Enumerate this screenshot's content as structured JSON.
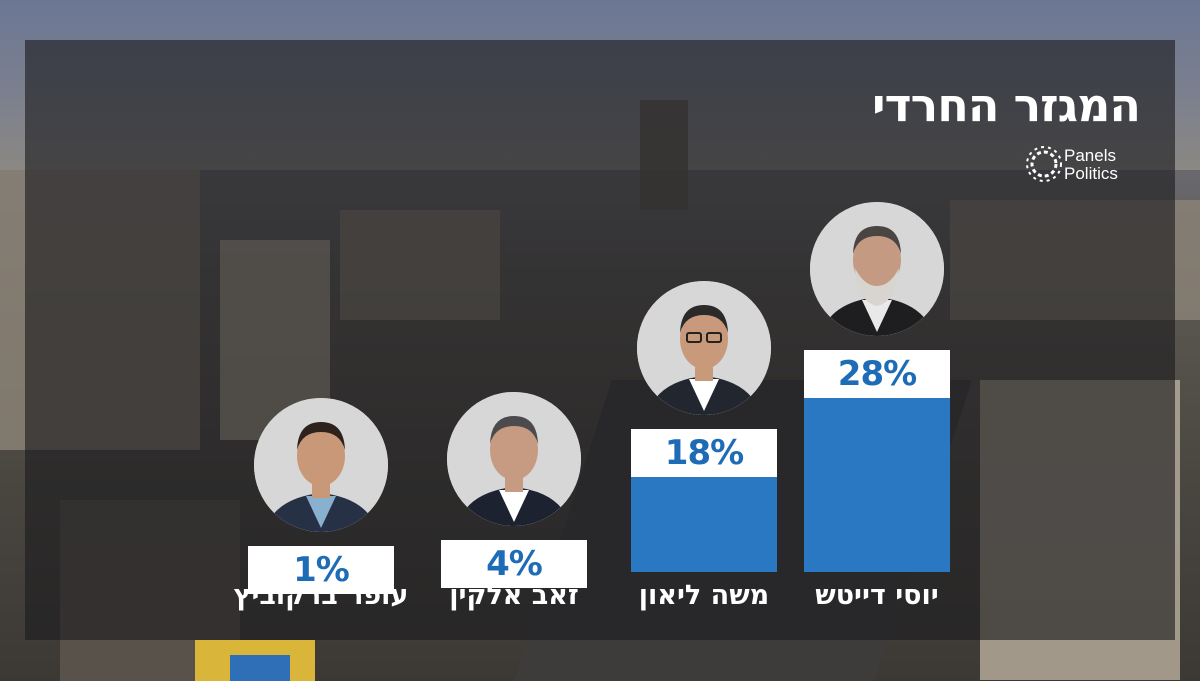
{
  "title": "המגזר החרדי",
  "logo": {
    "line1": "Panels",
    "line2": "Politics"
  },
  "colors": {
    "bar": "#2b78c2",
    "label_text": "#1e6bb6",
    "label_bg": "#ffffff",
    "panel": "rgba(28,28,30,0.62)"
  },
  "chart_data": {
    "type": "bar",
    "categories": [
      "עופר ברקוביץ",
      "זאב אלקין",
      "משה ליאון",
      "יוסי דייטש"
    ],
    "values": [
      1,
      4,
      18,
      28
    ],
    "value_labels": [
      "1%",
      "4%",
      "18%",
      "28%"
    ],
    "ylim": [
      0,
      30
    ],
    "grid": false,
    "legend": "none",
    "candidate_photos": [
      "portrait-young-man",
      "portrait-man-gray-hair",
      "portrait-man-glasses",
      "portrait-man-beard"
    ]
  }
}
